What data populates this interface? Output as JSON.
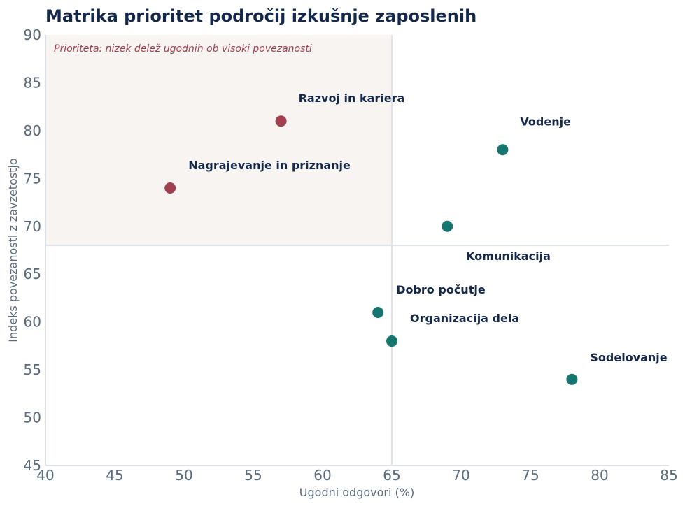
{
  "colors": {
    "priority": "#a1404f",
    "other": "#16766f",
    "title": "#14284b",
    "quadrant_fill": "#f7f4f1",
    "threshold_line": "#dfe4ea",
    "axis": "#cfd7df",
    "tick": "#5a6a7d"
  },
  "chart_data": {
    "type": "scatter",
    "title": "Matrika prioritet področij izkušnje zaposlenih",
    "xlabel": "Ugodni odgovori (%)",
    "ylabel": "Indeks povezanosti z zavzetostjo",
    "xlim": [
      40,
      85
    ],
    "ylim": [
      45,
      90
    ],
    "xticks": [
      "40",
      "45",
      "50",
      "55",
      "60",
      "65",
      "70",
      "75",
      "80",
      "85"
    ],
    "yticks": [
      "45",
      "50",
      "55",
      "60",
      "65",
      "70",
      "75",
      "80",
      "85",
      "90"
    ],
    "x_threshold": 65,
    "y_threshold": 68,
    "quadrant_note": "Prioriteta: nizek delež ugodnih ob visoki povezanosti",
    "grid": false,
    "points": [
      {
        "label": "Razvoj in kariera",
        "x": 57,
        "y": 81,
        "priority": true
      },
      {
        "label": "Nagrajevanje in priznanje",
        "x": 49,
        "y": 74,
        "priority": true
      },
      {
        "label": "Vodenje",
        "x": 73,
        "y": 78,
        "priority": false
      },
      {
        "label": "Komunikacija",
        "x": 69,
        "y": 70,
        "priority": false
      },
      {
        "label": "Dobro počutje",
        "x": 64,
        "y": 61,
        "priority": false
      },
      {
        "label": "Organizacija dela",
        "x": 65,
        "y": 58,
        "priority": false
      },
      {
        "label": "Sodelovanje",
        "x": 78,
        "y": 54,
        "priority": false
      }
    ]
  }
}
